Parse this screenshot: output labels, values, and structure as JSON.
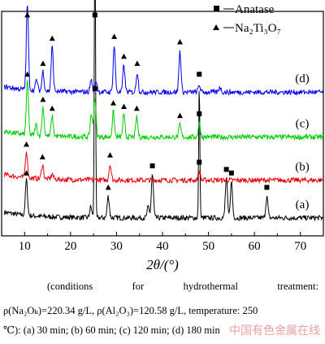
{
  "chart_data": {
    "type": "line",
    "xlabel": "2θ/(°)",
    "xlim": [
      5,
      75
    ],
    "xticks": [
      10,
      20,
      30,
      40,
      50,
      60,
      70
    ],
    "legend": [
      {
        "marker": "square",
        "label": "Anatase"
      },
      {
        "marker": "triangle",
        "label": "Na₂Ti₃O₇"
      }
    ],
    "legend_position": "top-right",
    "series": [
      {
        "name": "(a)",
        "color": "#000000",
        "baseline": 1.0,
        "peaks": [
          [
            10.4,
            2.0
          ],
          [
            24.4,
            0.6
          ],
          [
            25.3,
            17.0
          ],
          [
            28.2,
            1.2
          ],
          [
            36.9,
            0.6
          ],
          [
            37.8,
            2.4
          ],
          [
            48.0,
            7.5
          ],
          [
            53.9,
            2.2
          ],
          [
            55.0,
            2.0
          ],
          [
            62.7,
            1.2
          ]
        ],
        "square_markers": [
          25.3,
          37.8,
          48.0,
          53.9,
          55.0,
          62.7
        ],
        "triangle_markers": [
          10.4,
          28.2
        ]
      },
      {
        "name": "(b)",
        "color": "#e8000b",
        "baseline": 3.1,
        "peaks": [
          [
            10.4,
            1.5
          ],
          [
            13.9,
            0.8
          ],
          [
            16.0,
            0.3
          ],
          [
            28.6,
            0.9
          ],
          [
            48.0,
            0.5
          ]
        ],
        "square_markers": [
          48.0
        ],
        "triangle_markers": [
          10.4,
          13.9,
          28.6
        ]
      },
      {
        "name": "(c)",
        "color": "#00cc00",
        "baseline": 5.5,
        "peaks": [
          [
            10.6,
            3.0
          ],
          [
            12.5,
            0.6
          ],
          [
            14.0,
            1.6
          ],
          [
            16.0,
            1.1
          ],
          [
            24.5,
            1.3
          ],
          [
            25.3,
            2.2
          ],
          [
            29.3,
            1.4
          ],
          [
            31.6,
            1.2
          ],
          [
            34.4,
            1.1
          ],
          [
            43.8,
            0.7
          ],
          [
            48.0,
            0.8
          ]
        ],
        "square_markers": [
          25.3,
          48.0
        ],
        "triangle_markers": [
          10.6,
          14.0,
          16.0,
          29.3,
          31.6,
          34.4,
          43.8
        ]
      },
      {
        "name": "(d)",
        "color": "#0000ee",
        "baseline": 8.0,
        "peaks": [
          [
            10.6,
            4.8
          ],
          [
            12.6,
            0.6
          ],
          [
            14.0,
            1.1
          ],
          [
            16.0,
            2.5
          ],
          [
            24.5,
            0.7
          ],
          [
            25.6,
            0.6
          ],
          [
            29.5,
            2.6
          ],
          [
            31.6,
            1.5
          ],
          [
            34.5,
            1.1
          ],
          [
            43.8,
            2.3
          ],
          [
            48.0,
            0.4
          ],
          [
            52.5,
            0.3
          ]
        ],
        "square_markers": [],
        "triangle_markers": [
          10.6,
          14.0,
          16.0,
          29.5,
          31.6,
          34.5,
          43.8
        ]
      }
    ]
  },
  "caption": {
    "line1": "(conditions for hydrothermal treatment:",
    "line2": "ρ(Na₂Oₖ)=220.34 g/L, ρ(Al₂O₃)=120.58 g/L, temperature: 250",
    "line3": "℃): (a) 30 min; (b) 60 min; (c) 120 min; (d) 180 min"
  },
  "watermark": "中国有色金属在线"
}
